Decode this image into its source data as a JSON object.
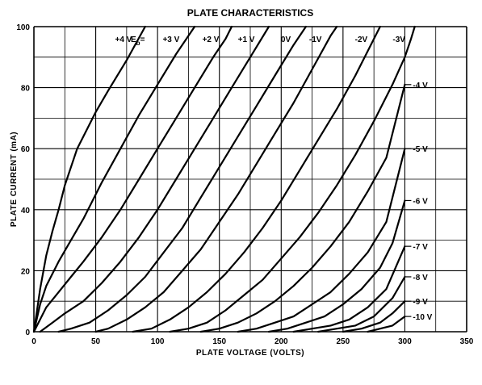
{
  "chart_data": {
    "type": "line",
    "title": "PLATE CHARACTERISTICS",
    "xlabel": "PLATE VOLTAGE (VOLTS)",
    "ylabel": "PLATE CURRENT (mA)",
    "xlim": [
      0,
      350
    ],
    "ylim": [
      0,
      100
    ],
    "grid": true,
    "x_ticks": [
      "0",
      "50",
      "100",
      "150",
      "200",
      "250",
      "300",
      "350"
    ],
    "y_ticks": [
      "0",
      "20",
      "40",
      "60",
      "80",
      "100"
    ],
    "legend_prefix": "E",
    "legend_prefix_sub": "b",
    "legend_prefix_eq": "=",
    "series": [
      {
        "name": "+4 V",
        "label": "+4 V",
        "points": [
          [
            0,
            0
          ],
          [
            5,
            14
          ],
          [
            10,
            25
          ],
          [
            15,
            33
          ],
          [
            20,
            40
          ],
          [
            25,
            48
          ],
          [
            35,
            60
          ],
          [
            50,
            72
          ],
          [
            60,
            79
          ],
          [
            75,
            89
          ],
          [
            90,
            100
          ]
        ]
      },
      {
        "name": "+3 V",
        "label": "+3 V",
        "points": [
          [
            0,
            0
          ],
          [
            5,
            9
          ],
          [
            10,
            15
          ],
          [
            20,
            23
          ],
          [
            30,
            30
          ],
          [
            40,
            37
          ],
          [
            55,
            49
          ],
          [
            70,
            60
          ],
          [
            85,
            71
          ],
          [
            100,
            81
          ],
          [
            115,
            91
          ],
          [
            130,
            100
          ]
        ]
      },
      {
        "name": "+2 V",
        "label": "+2 V",
        "points": [
          [
            0,
            0
          ],
          [
            10,
            8
          ],
          [
            20,
            13
          ],
          [
            30,
            18
          ],
          [
            40,
            23
          ],
          [
            55,
            31
          ],
          [
            70,
            40
          ],
          [
            85,
            50
          ],
          [
            100,
            60
          ],
          [
            115,
            70
          ],
          [
            130,
            80
          ],
          [
            145,
            90
          ],
          [
            155,
            96
          ],
          [
            160,
            100
          ]
        ]
      },
      {
        "name": "+1 V",
        "label": "+1 V",
        "points": [
          [
            5,
            0
          ],
          [
            15,
            3
          ],
          [
            25,
            6
          ],
          [
            40,
            10
          ],
          [
            55,
            16
          ],
          [
            70,
            23
          ],
          [
            85,
            31
          ],
          [
            100,
            40
          ],
          [
            115,
            50
          ],
          [
            130,
            60
          ],
          [
            145,
            70
          ],
          [
            160,
            80
          ],
          [
            175,
            90
          ],
          [
            190,
            100
          ]
        ]
      },
      {
        "name": "0V",
        "label": "0V",
        "points": [
          [
            20,
            0
          ],
          [
            30,
            1
          ],
          [
            45,
            3
          ],
          [
            60,
            7
          ],
          [
            75,
            12
          ],
          [
            90,
            18
          ],
          [
            105,
            26
          ],
          [
            120,
            34
          ],
          [
            135,
            44
          ],
          [
            150,
            54
          ],
          [
            165,
            64
          ],
          [
            180,
            74
          ],
          [
            195,
            84
          ],
          [
            210,
            94
          ],
          [
            220,
            100
          ]
        ]
      },
      {
        "name": "-1V",
        "label": "-1V",
        "points": [
          [
            50,
            0
          ],
          [
            60,
            1
          ],
          [
            75,
            4
          ],
          [
            90,
            8
          ],
          [
            105,
            13
          ],
          [
            120,
            20
          ],
          [
            135,
            27
          ],
          [
            150,
            36
          ],
          [
            165,
            45
          ],
          [
            180,
            55
          ],
          [
            195,
            65
          ],
          [
            210,
            75
          ],
          [
            225,
            86
          ],
          [
            240,
            97
          ],
          [
            245,
            100
          ]
        ]
      },
      {
        "name": "-2V",
        "label": "-2V",
        "points": [
          [
            80,
            0
          ],
          [
            95,
            1
          ],
          [
            110,
            4
          ],
          [
            125,
            8
          ],
          [
            140,
            13
          ],
          [
            155,
            19
          ],
          [
            170,
            26
          ],
          [
            185,
            34
          ],
          [
            200,
            43
          ],
          [
            215,
            53
          ],
          [
            230,
            63
          ],
          [
            245,
            73
          ],
          [
            260,
            84
          ],
          [
            270,
            92
          ],
          [
            280,
            100
          ]
        ]
      },
      {
        "name": "-3V",
        "label": "-3V",
        "points": [
          [
            110,
            0
          ],
          [
            125,
            1
          ],
          [
            140,
            3
          ],
          [
            155,
            7
          ],
          [
            170,
            12
          ],
          [
            185,
            17
          ],
          [
            200,
            24
          ],
          [
            215,
            31
          ],
          [
            230,
            39
          ],
          [
            245,
            48
          ],
          [
            260,
            58
          ],
          [
            275,
            69
          ],
          [
            290,
            81
          ],
          [
            300,
            90
          ],
          [
            305,
            96
          ],
          [
            308,
            100
          ]
        ]
      },
      {
        "name": "-4 V",
        "label": "-4 V",
        "points": [
          [
            135,
            0
          ],
          [
            150,
            1
          ],
          [
            165,
            3
          ],
          [
            180,
            6
          ],
          [
            195,
            10
          ],
          [
            210,
            15
          ],
          [
            225,
            21
          ],
          [
            240,
            28
          ],
          [
            255,
            36
          ],
          [
            270,
            46
          ],
          [
            285,
            57
          ],
          [
            300,
            81
          ]
        ]
      },
      {
        "name": "-5 V",
        "label": "-5 V",
        "points": [
          [
            165,
            0
          ],
          [
            180,
            1
          ],
          [
            195,
            3
          ],
          [
            210,
            5
          ],
          [
            225,
            9
          ],
          [
            240,
            13
          ],
          [
            255,
            19
          ],
          [
            270,
            26
          ],
          [
            285,
            36
          ],
          [
            300,
            60
          ]
        ]
      },
      {
        "name": "-6 V",
        "label": "-6 V",
        "points": [
          [
            190,
            0
          ],
          [
            205,
            1
          ],
          [
            220,
            3
          ],
          [
            235,
            5
          ],
          [
            250,
            9
          ],
          [
            265,
            14
          ],
          [
            280,
            21
          ],
          [
            290,
            29
          ],
          [
            300,
            43
          ]
        ]
      },
      {
        "name": "-7 V",
        "label": "-7 V",
        "points": [
          [
            210,
            0
          ],
          [
            225,
            1
          ],
          [
            240,
            2
          ],
          [
            255,
            4
          ],
          [
            270,
            8
          ],
          [
            285,
            14
          ],
          [
            300,
            28
          ]
        ]
      },
      {
        "name": "-8 V",
        "label": "-8 V",
        "points": [
          [
            230,
            0
          ],
          [
            245,
            1
          ],
          [
            260,
            2
          ],
          [
            275,
            5
          ],
          [
            290,
            11
          ],
          [
            300,
            18
          ]
        ]
      },
      {
        "name": "-9 V",
        "label": "-9 V",
        "points": [
          [
            250,
            0
          ],
          [
            265,
            1
          ],
          [
            280,
            3
          ],
          [
            290,
            6
          ],
          [
            300,
            10
          ]
        ]
      },
      {
        "name": "-10 V",
        "label": "-10 V",
        "points": [
          [
            270,
            0
          ],
          [
            280,
            1
          ],
          [
            290,
            2
          ],
          [
            300,
            5
          ]
        ]
      }
    ]
  }
}
